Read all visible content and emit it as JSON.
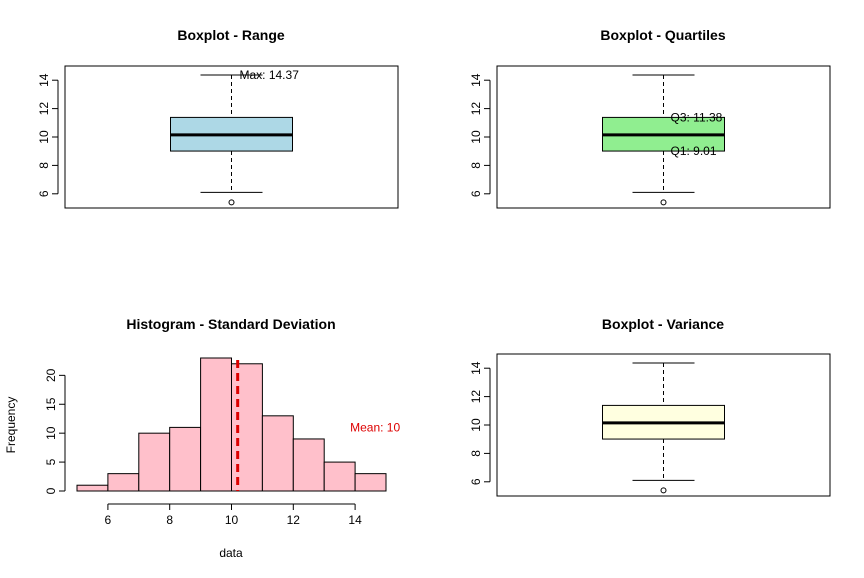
{
  "chart_data": [
    {
      "type": "box",
      "title": "Boxplot - Range",
      "ylim": [
        5,
        15
      ],
      "yticks": [
        6,
        8,
        10,
        12,
        14
      ],
      "box": {
        "whisker_low": 6.1,
        "q1": 9.01,
        "median": 10.15,
        "q3": 11.38,
        "whisker_high": 14.37,
        "outliers": [
          5.4
        ]
      },
      "fill": "#add8e6",
      "annotations": [
        {
          "text": "Max: 14.37",
          "x": 1,
          "y": 14.37
        }
      ]
    },
    {
      "type": "box",
      "title": "Boxplot - Quartiles",
      "ylim": [
        5,
        15
      ],
      "yticks": [
        6,
        8,
        10,
        12,
        14
      ],
      "box": {
        "whisker_low": 6.1,
        "q1": 9.01,
        "median": 10.15,
        "q3": 11.38,
        "whisker_high": 14.37,
        "outliers": [
          5.4
        ]
      },
      "fill": "#90ee90",
      "annotations": [
        {
          "text": "Q3: 11.38",
          "x": 1,
          "y": 11.38
        },
        {
          "text": "Q1: 9.01",
          "x": 1,
          "y": 9.01
        }
      ]
    },
    {
      "type": "histogram",
      "title": "Histogram - Standard Deviation",
      "xlabel": "data",
      "ylabel": "Frequency",
      "xlim": [
        5,
        15
      ],
      "ylim": [
        0,
        23
      ],
      "xticks": [
        6,
        8,
        10,
        12,
        14
      ],
      "yticks": [
        0,
        5,
        10,
        15,
        20
      ],
      "bins": [
        {
          "start": 5,
          "end": 6,
          "count": 1
        },
        {
          "start": 6,
          "end": 7,
          "count": 3
        },
        {
          "start": 7,
          "end": 8,
          "count": 10
        },
        {
          "start": 8,
          "end": 9,
          "count": 11
        },
        {
          "start": 9,
          "end": 10,
          "count": 23
        },
        {
          "start": 10,
          "end": 11,
          "count": 22
        },
        {
          "start": 11,
          "end": 12,
          "count": 13
        },
        {
          "start": 12,
          "end": 13,
          "count": 9
        },
        {
          "start": 13,
          "end": 14,
          "count": 5
        },
        {
          "start": 14,
          "end": 15,
          "count": 3
        }
      ],
      "fill": "#ffc0cb",
      "mean_line": {
        "x": 10.2,
        "color": "#dd0000"
      },
      "annotations": [
        {
          "text": "Mean: 10",
          "x": 14,
          "y": 11,
          "color": "#dd0000"
        }
      ]
    },
    {
      "type": "box",
      "title": "Boxplot - Variance",
      "ylim": [
        5,
        15
      ],
      "yticks": [
        6,
        8,
        10,
        12,
        14
      ],
      "box": {
        "whisker_low": 6.1,
        "q1": 9.01,
        "median": 10.15,
        "q3": 11.38,
        "whisker_high": 14.37,
        "outliers": [
          5.4
        ]
      },
      "fill": "#ffffe0",
      "annotations": []
    }
  ]
}
